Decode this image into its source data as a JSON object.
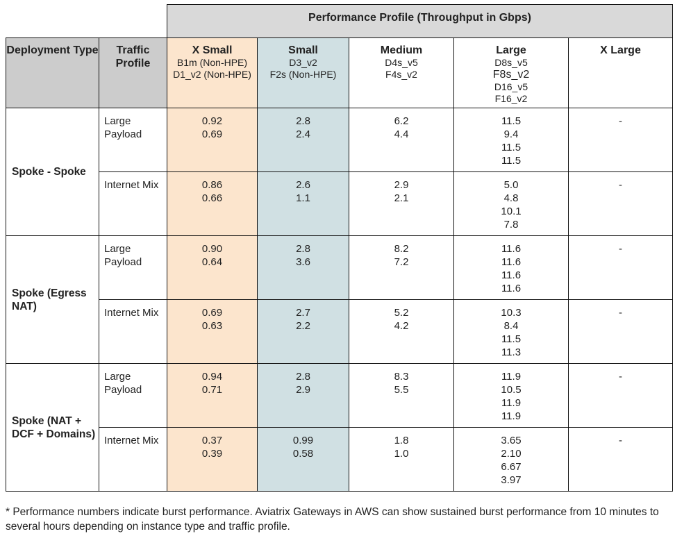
{
  "super_header": "Performance Profile (Throughput in Gbps)",
  "headers": {
    "deployment": "Deployment Type",
    "traffic": "Traffic Profile",
    "sizes": [
      {
        "name": "X Small",
        "instances": [
          "B1m (Non-HPE)",
          "D1_v2 (Non-HPE)"
        ]
      },
      {
        "name": "Small",
        "instances": [
          "D3_v2",
          "F2s (Non-HPE)"
        ]
      },
      {
        "name": "Medium",
        "instances": [
          "D4s_v5",
          "F4s_v2"
        ]
      },
      {
        "name": "Large",
        "instances": [
          "D8s_v5",
          "F8s_v2",
          "D16_v5",
          "F16_v2"
        ]
      },
      {
        "name": "X Large",
        "instances": []
      }
    ]
  },
  "groups": [
    {
      "deployment": "Spoke - Spoke",
      "rows": [
        {
          "traffic": "Large Payload",
          "values": [
            [
              "0.92",
              "0.69"
            ],
            [
              "2.8",
              "2.4"
            ],
            [
              "6.2",
              "4.4"
            ],
            [
              "11.5",
              "9.4",
              "11.5",
              "11.5"
            ],
            [
              "-"
            ]
          ]
        },
        {
          "traffic": "Internet Mix",
          "values": [
            [
              "0.86",
              "0.66"
            ],
            [
              "2.6",
              "1.1"
            ],
            [
              "2.9",
              "2.1"
            ],
            [
              "5.0",
              "4.8",
              "10.1",
              "7.8"
            ],
            [
              "-"
            ]
          ]
        }
      ]
    },
    {
      "deployment": "Spoke (Egress NAT)",
      "rows": [
        {
          "traffic": "Large Payload",
          "values": [
            [
              "0.90",
              "0.64"
            ],
            [
              "2.8",
              "3.6"
            ],
            [
              "8.2",
              "7.2"
            ],
            [
              "11.6",
              "11.6",
              "11.6",
              "11.6"
            ],
            [
              "-"
            ]
          ]
        },
        {
          "traffic": "Internet Mix",
          "values": [
            [
              "0.69",
              "0.63"
            ],
            [
              "2.7",
              "2.2"
            ],
            [
              "5.2",
              "4.2"
            ],
            [
              "10.3",
              "8.4",
              "11.5",
              "11.3"
            ],
            [
              "-"
            ]
          ]
        }
      ]
    },
    {
      "deployment": "Spoke (NAT + DCF + Domains)",
      "rows": [
        {
          "traffic": "Large Payload",
          "values": [
            [
              "0.94",
              "0.71"
            ],
            [
              "2.8",
              "2.9"
            ],
            [
              "8.3",
              "5.5"
            ],
            [
              "11.9",
              "10.5",
              "11.9",
              "11.9"
            ],
            [
              "-"
            ]
          ]
        },
        {
          "traffic": "Internet Mix",
          "values": [
            [
              "0.37",
              "0.39"
            ],
            [
              "0.99",
              "0.58"
            ],
            [
              "1.8",
              "1.0"
            ],
            [
              "3.65",
              "2.10",
              "6.67",
              "3.97"
            ],
            [
              "-"
            ]
          ]
        }
      ]
    }
  ],
  "footnote": "* Performance numbers indicate burst performance. Aviatrix Gateways in AWS can show sustained burst performance from 10 minutes to several hours depending on instance type and traffic profile.",
  "colors": {
    "header_gray": "#cccccc",
    "super_header_gray": "#d9d9d9",
    "x_small_bg": "#fce5cd",
    "small_bg": "#d0e0e3"
  }
}
